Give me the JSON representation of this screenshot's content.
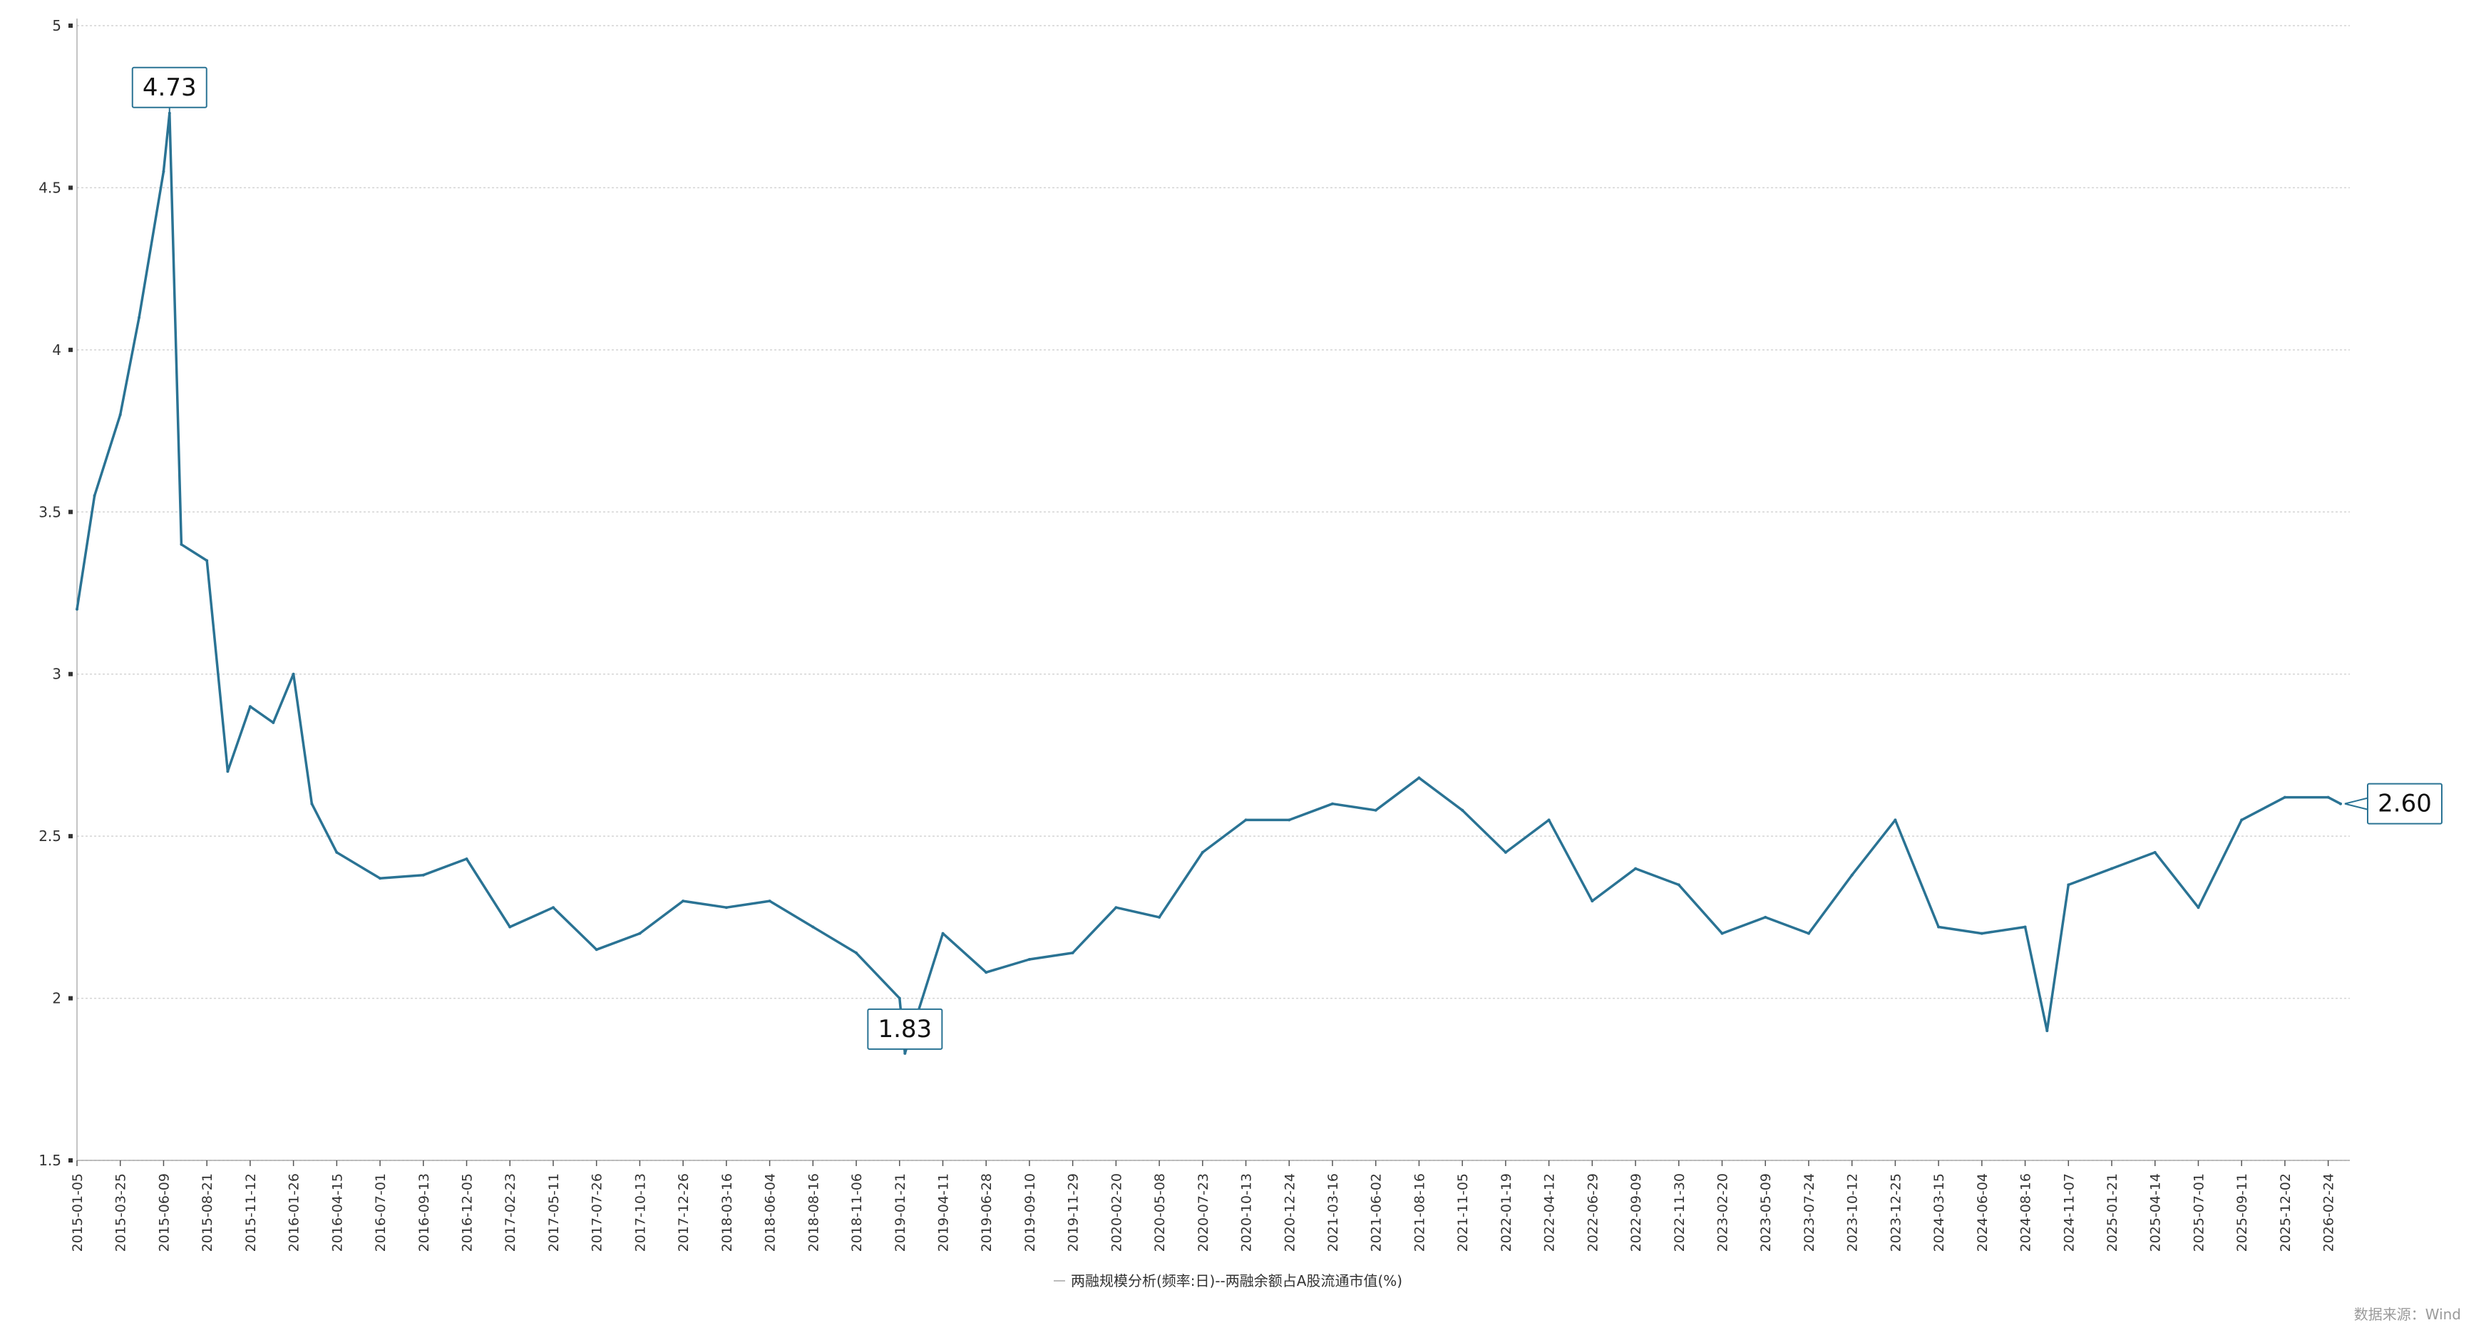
{
  "chart_data": {
    "type": "line",
    "title": "",
    "xlabel": "",
    "ylabel": "",
    "ylim": [
      1.5,
      5
    ],
    "yticks": [
      "5",
      "4.5",
      "4",
      "3.5",
      "3",
      "2.5",
      "2",
      "1.5"
    ],
    "ytick_values": [
      5,
      4.5,
      4,
      3.5,
      3,
      2.5,
      2,
      1.5
    ],
    "grid": true,
    "legend_position": "bottom-center",
    "x_tick_labels": [
      "2015-01-05",
      "2015-03-25",
      "2015-06-09",
      "2015-08-21",
      "2015-11-12",
      "2016-01-26",
      "2016-04-15",
      "2016-07-01",
      "2016-09-13",
      "2016-12-05",
      "2017-02-23",
      "2017-05-11",
      "2017-07-26",
      "2017-10-13",
      "2017-12-26",
      "2018-03-16",
      "2018-06-04",
      "2018-08-16",
      "2018-11-06",
      "2019-01-21",
      "2019-04-11",
      "2019-06-28",
      "2019-09-10",
      "2019-11-29",
      "2020-02-20",
      "2020-05-08",
      "2020-07-23",
      "2020-10-13",
      "2020-12-24",
      "2021-03-16",
      "2021-06-02",
      "2021-08-16",
      "2021-11-05",
      "2022-01-19",
      "2022-04-12",
      "2022-06-29",
      "2022-09-09",
      "2022-11-30",
      "2023-02-20",
      "2023-05-09",
      "2023-07-24",
      "2023-10-12",
      "2023-12-25",
      "2024-03-15",
      "2024-06-04",
      "2024-08-16",
      "2024-11-07",
      "2025-01-21",
      "2025-04-14",
      "2025-07-01",
      "2025-09-11",
      "2025-12-02",
      "2026-02-24"
    ],
    "series": [
      {
        "name": "两融规模分析(频率:日)--两融余额占A股流通市值(%)",
        "color": "#2a7394",
        "x": [
          "2015-01-05",
          "2015-02-06",
          "2015-03-25",
          "2015-04-27",
          "2015-06-09",
          "2015-06-19",
          "2015-07-09",
          "2015-08-21",
          "2015-09-30",
          "2015-11-12",
          "2015-12-22",
          "2016-01-26",
          "2016-02-29",
          "2016-04-15",
          "2016-07-01",
          "2016-09-13",
          "2016-12-05",
          "2017-02-23",
          "2017-05-11",
          "2017-07-26",
          "2017-10-13",
          "2017-12-26",
          "2018-03-16",
          "2018-06-04",
          "2018-08-16",
          "2018-11-06",
          "2019-01-21",
          "2019-01-31",
          "2019-04-11",
          "2019-06-28",
          "2019-09-10",
          "2019-11-29",
          "2020-02-20",
          "2020-05-08",
          "2020-07-23",
          "2020-10-13",
          "2020-12-24",
          "2021-03-16",
          "2021-06-02",
          "2021-08-16",
          "2021-11-05",
          "2022-01-19",
          "2022-04-12",
          "2022-06-29",
          "2022-09-09",
          "2022-11-30",
          "2023-02-20",
          "2023-05-09",
          "2023-07-24",
          "2023-10-12",
          "2023-12-25",
          "2024-03-15",
          "2024-06-04",
          "2024-08-16",
          "2024-09-27",
          "2024-11-07",
          "2025-01-21",
          "2025-04-14",
          "2025-07-01",
          "2025-09-11",
          "2025-12-02",
          "2026-02-24",
          "2026-03-20"
        ],
        "values": [
          3.2,
          3.55,
          3.8,
          4.1,
          4.55,
          4.73,
          3.4,
          3.35,
          2.7,
          2.9,
          2.85,
          3.0,
          2.6,
          2.45,
          2.37,
          2.38,
          2.43,
          2.22,
          2.28,
          2.15,
          2.2,
          2.3,
          2.28,
          2.3,
          2.22,
          2.14,
          2.0,
          1.83,
          2.2,
          2.08,
          2.12,
          2.14,
          2.28,
          2.25,
          2.45,
          2.55,
          2.55,
          2.6,
          2.58,
          2.68,
          2.58,
          2.45,
          2.55,
          2.3,
          2.4,
          2.35,
          2.2,
          2.25,
          2.2,
          2.38,
          2.55,
          2.22,
          2.2,
          2.22,
          1.9,
          2.35,
          2.4,
          2.45,
          2.28,
          2.55,
          2.62,
          2.62,
          2.6
        ]
      }
    ],
    "annotations": [
      {
        "label": "4.73",
        "x": "2015-06-19",
        "value": 4.73
      },
      {
        "label": "1.83",
        "x": "2019-01-31",
        "value": 1.83
      },
      {
        "label": "2.60",
        "x": "2026-03-20",
        "value": 2.6
      }
    ]
  },
  "legend_label": "两融规模分析(频率:日)--两融余额占A股流通市值(%)",
  "source_label": "数据来源：Wind"
}
